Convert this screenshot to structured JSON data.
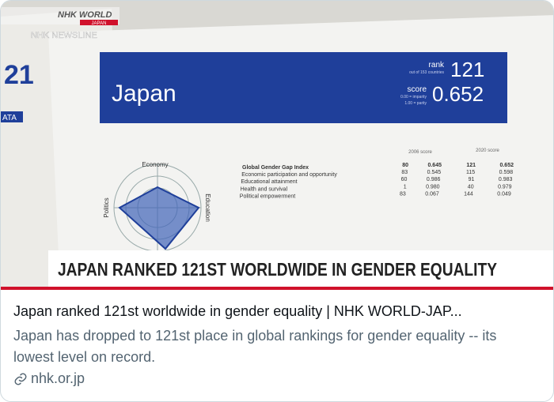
{
  "image": {
    "broadcaster": "NHK WORLD",
    "broadcaster_sub": "JAPAN",
    "program": "NHK NEWSLINE",
    "left_page": {
      "number": "21",
      "tab": "ATA"
    },
    "report": {
      "country": "Japan",
      "rank_label": "rank",
      "rank_note": "out of 153 countries",
      "rank": "121",
      "score_label": "score",
      "score_note_1": "0.00 = imparity",
      "score_note_2": "1.00 = parity",
      "score": "0.652",
      "radar_labels": [
        "Economy",
        "Education",
        "Politics"
      ],
      "table": {
        "headers": [
          "2006 score",
          "2020 score"
        ],
        "rows": [
          [
            "Global Gender Gap Index",
            "80",
            "0.645",
            "121",
            "0.652"
          ],
          [
            "Economic participation and opportunity",
            "83",
            "0.545",
            "115",
            "0.598"
          ],
          [
            "Educational attainment",
            "60",
            "0.986",
            "91",
            "0.983"
          ],
          [
            "Health and survival",
            "1",
            "0.980",
            "40",
            "0.979"
          ],
          [
            "Political empowerment",
            "83",
            "0.067",
            "144",
            "0.049"
          ]
        ]
      }
    },
    "caption": "JAPAN RANKED 121ST WORLDWIDE IN GENDER EQUALITY"
  },
  "card": {
    "title": "Japan ranked 121st worldwide in gender equality | NHK WORLD-JAP...",
    "description": "Japan has dropped to 121st place in global rankings for gender equality -- its lowest level on record.",
    "domain": "nhk.or.jp"
  }
}
